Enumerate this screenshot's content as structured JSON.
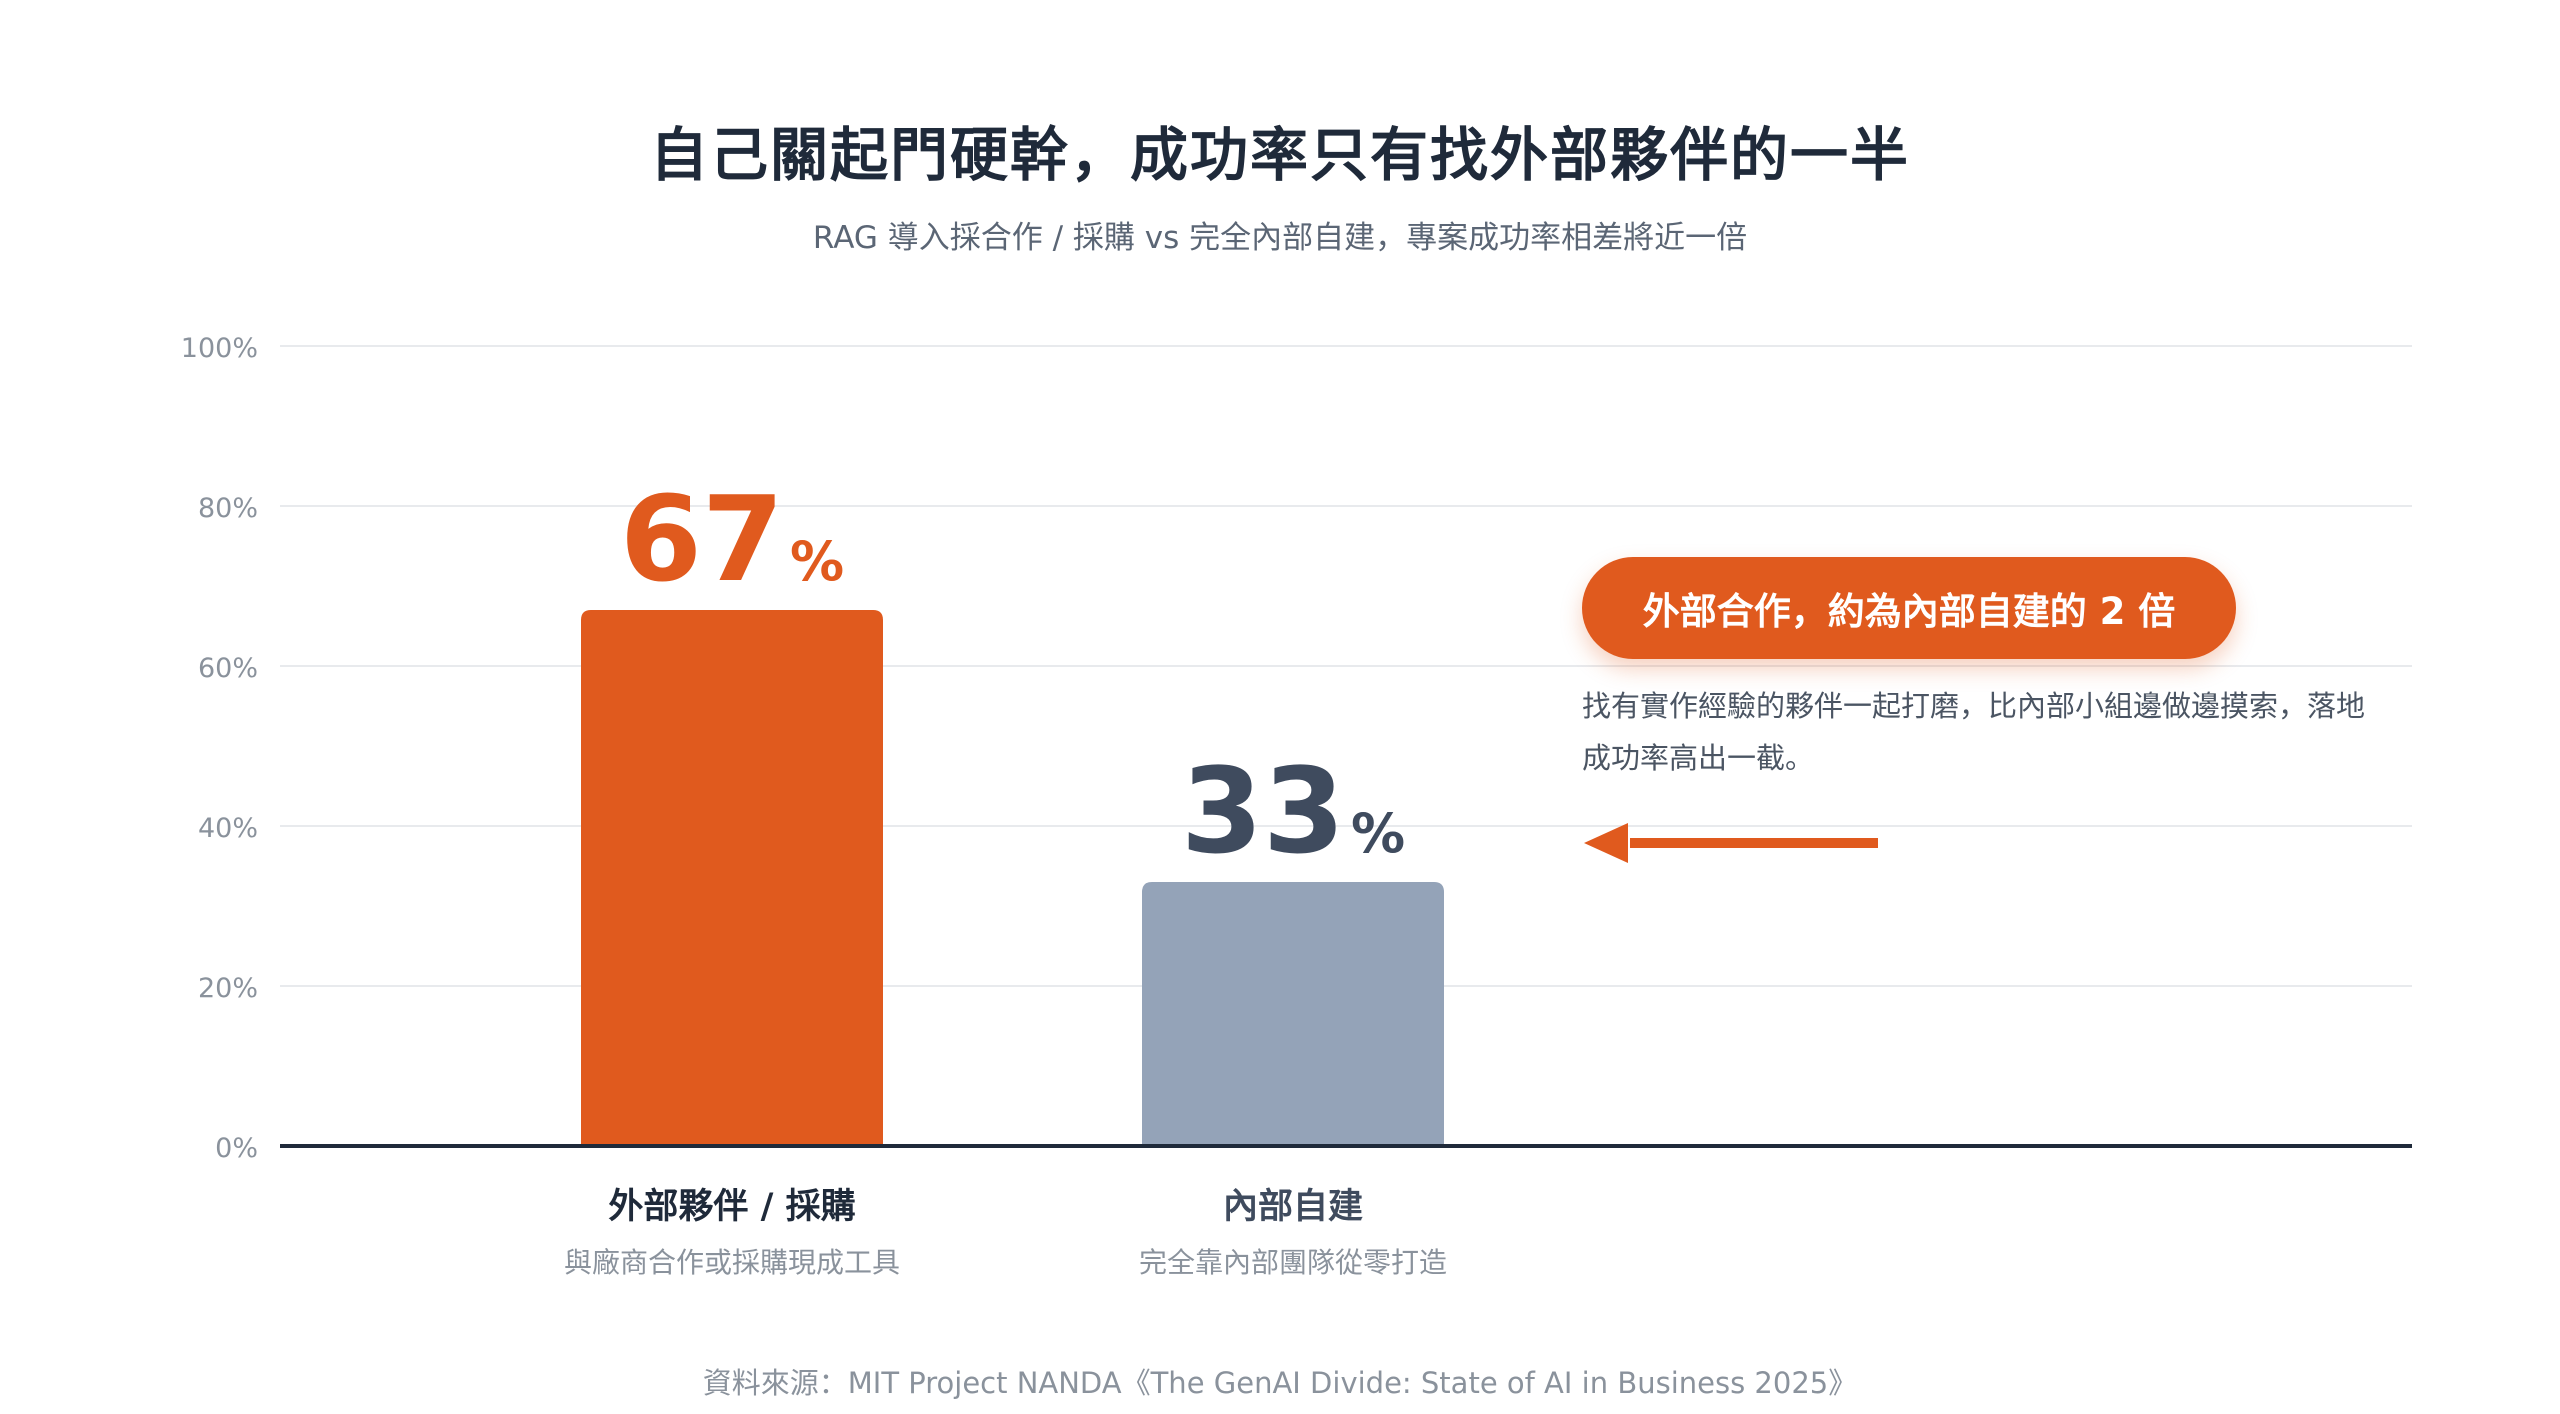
{
  "title": "自己關起門硬幹，成功率只有找外部夥伴的一半",
  "subtitle": "RAG 導入採合作 / 採購 vs 完全內部自建，專案成功率相差將近一倍",
  "callout": {
    "badge": "外部合作，約為內部自建的 2 倍",
    "text": "找有實作經驗的夥伴一起打磨，比內部小組邊做邊摸索，落地成功率高出一截。"
  },
  "source": "資料來源：MIT Project NANDA《The GenAI Divide: State of AI in Business 2025》",
  "colors": {
    "accent": "#e05a1e",
    "secondary_bar": "#94a3b8",
    "secondary_label": "#3f4b5e",
    "axis": "#1f2a3a",
    "grid": "#e8eaed",
    "tick": "#8a929c"
  },
  "chart_data": {
    "type": "bar",
    "categories": [
      "外部夥伴 / 採購",
      "內部自建"
    ],
    "category_descriptions": [
      "與廠商合作或採購現成工具",
      "完全靠內部團隊從零打造"
    ],
    "values": [
      67,
      33
    ],
    "value_labels": [
      "67",
      "33"
    ],
    "value_unit": "%",
    "ylim": [
      0,
      100
    ],
    "yticks": [
      0,
      20,
      40,
      60,
      80,
      100
    ],
    "ytick_labels": [
      "0%",
      "20%",
      "40%",
      "60%",
      "80%",
      "100%"
    ],
    "grid": true,
    "bar_colors": [
      "#e05a1e",
      "#94a3b8"
    ],
    "value_label_colors": [
      "#e05a1e",
      "#3f4b5e"
    ]
  }
}
